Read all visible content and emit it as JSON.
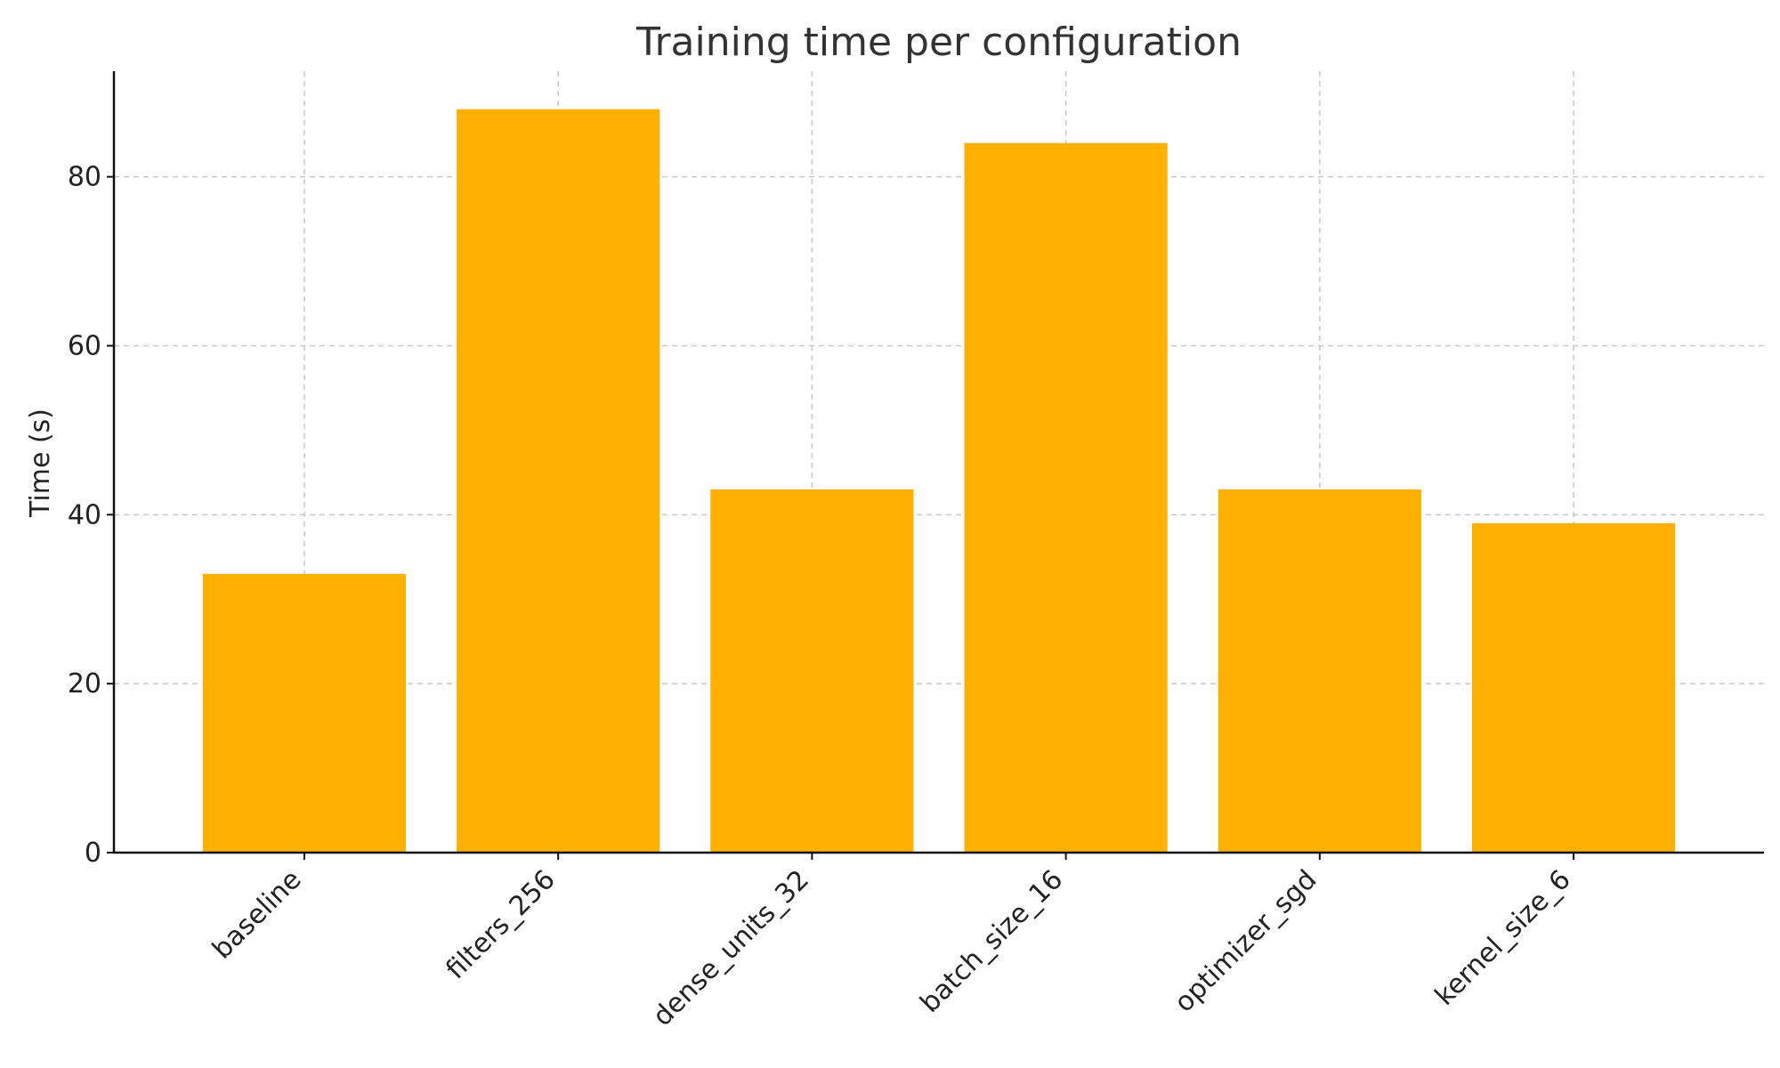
{
  "chart_data": {
    "type": "bar",
    "title": "Training time per configuration",
    "xlabel": "",
    "ylabel": "Time (s)",
    "categories": [
      "baseline",
      "filters_256",
      "dense_units_32",
      "batch_size_16",
      "optimizer_sgd",
      "kernel_size_6"
    ],
    "values": [
      33,
      88,
      43,
      84,
      43,
      39
    ],
    "ylim": [
      0,
      92.5
    ],
    "yticks": [
      0,
      20,
      40,
      60,
      80
    ],
    "grid": true,
    "bar_color": "#FFB000"
  }
}
